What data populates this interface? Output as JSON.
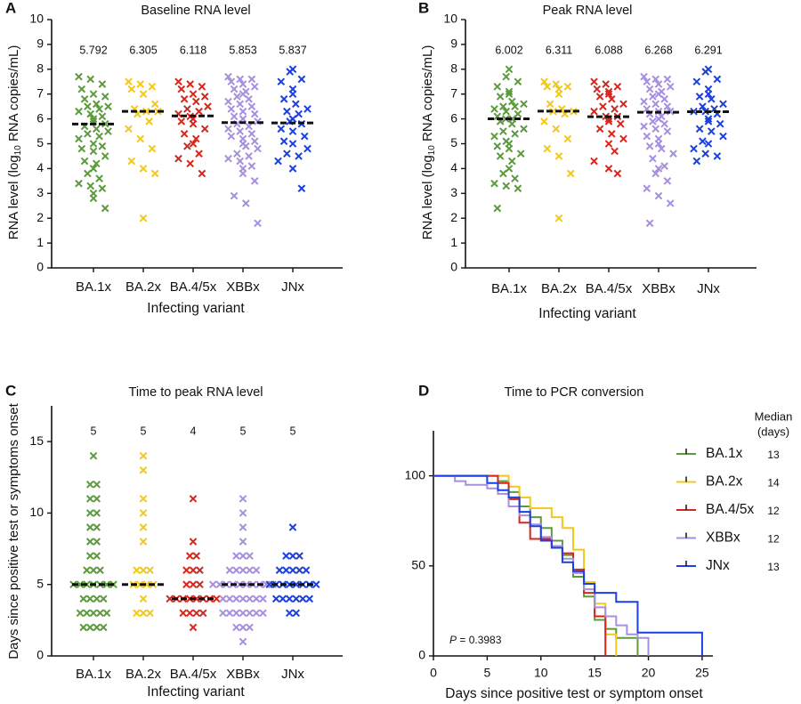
{
  "chart_data": [
    {
      "type": "strip",
      "panel": "A",
      "title": "Baseline RNA level",
      "ylabel": {
        "pre": "RNA level (log",
        "sub": "10",
        "post": " RNA copies/mL)"
      },
      "xlabel": "Infecting variant",
      "categories": [
        "BA.1x",
        "BA.2x",
        "BA.4/5x",
        "XBBx",
        "JNx"
      ],
      "colors": [
        "#5b9b3c",
        "#f2c81a",
        "#d9261c",
        "#a78fe0",
        "#1c3fe0"
      ],
      "medians": [
        5.792,
        6.305,
        6.118,
        5.853,
        5.837
      ],
      "values": [
        [
          7.7,
          7.6,
          7.4,
          7.2,
          7.0,
          6.9,
          6.8,
          6.6,
          6.5,
          6.5,
          6.4,
          6.3,
          6.2,
          6.1,
          6.0,
          5.9,
          5.8,
          5.7,
          5.6,
          5.5,
          5.4,
          5.3,
          5.2,
          5.0,
          4.9,
          4.8,
          4.7,
          4.5,
          4.3,
          4.2,
          4.0,
          3.8,
          3.6,
          3.4,
          3.3,
          3.2,
          3.0,
          2.8,
          2.4
        ],
        [
          7.5,
          7.4,
          7.3,
          7.2,
          7.0,
          6.6,
          6.4,
          6.3,
          6.3,
          6.2,
          5.9,
          5.6,
          5.2,
          4.8,
          4.3,
          4.0,
          3.8,
          2.0
        ],
        [
          7.5,
          7.4,
          7.3,
          7.2,
          7.0,
          6.9,
          6.8,
          6.7,
          6.5,
          6.4,
          6.3,
          6.2,
          6.1,
          6.0,
          5.9,
          5.8,
          5.6,
          5.4,
          5.2,
          5.0,
          4.9,
          4.6,
          4.4,
          4.2,
          3.8
        ],
        [
          7.7,
          7.6,
          7.6,
          7.5,
          7.4,
          7.3,
          7.2,
          7.1,
          7.0,
          6.9,
          6.8,
          6.7,
          6.6,
          6.5,
          6.4,
          6.3,
          6.2,
          6.1,
          6.0,
          5.9,
          5.8,
          5.7,
          5.6,
          5.5,
          5.4,
          5.3,
          5.2,
          5.1,
          5.0,
          4.9,
          4.8,
          4.6,
          4.5,
          4.4,
          4.3,
          4.1,
          4.0,
          3.8,
          3.5,
          2.9,
          2.6,
          1.8
        ],
        [
          8.0,
          7.9,
          7.6,
          7.5,
          7.2,
          7.0,
          6.8,
          6.6,
          6.4,
          6.3,
          6.2,
          6.0,
          5.9,
          5.8,
          5.6,
          5.5,
          5.3,
          5.1,
          5.0,
          4.8,
          4.6,
          4.5,
          4.3,
          4.0,
          3.2
        ]
      ],
      "ylim": [
        0,
        10
      ],
      "yticks": [
        0,
        1,
        2,
        3,
        4,
        5,
        6,
        7,
        8,
        9,
        10
      ]
    },
    {
      "type": "strip",
      "panel": "B",
      "title": "Peak RNA level",
      "ylabel": {
        "pre": "RNA level (log",
        "sub": "10",
        "post": " RNA copies/mL)"
      },
      "xlabel": "Infecting variant",
      "categories": [
        "BA.1x",
        "BA.2x",
        "BA.4/5x",
        "XBBx",
        "JNx"
      ],
      "colors": [
        "#5b9b3c",
        "#f2c81a",
        "#d9261c",
        "#a78fe0",
        "#1c3fe0"
      ],
      "medians": [
        6.002,
        6.311,
        6.088,
        6.268,
        6.291
      ],
      "values": [
        [
          8.0,
          7.7,
          7.5,
          7.3,
          7.1,
          7.0,
          6.9,
          6.7,
          6.6,
          6.5,
          6.5,
          6.4,
          6.3,
          6.2,
          6.1,
          6.0,
          6.0,
          5.9,
          5.8,
          5.6,
          5.5,
          5.4,
          5.3,
          5.1,
          5.0,
          4.9,
          4.8,
          4.6,
          4.5,
          4.3,
          4.0,
          3.8,
          3.6,
          3.4,
          3.3,
          3.2,
          2.4
        ],
        [
          7.5,
          7.4,
          7.3,
          7.3,
          7.2,
          7.0,
          6.6,
          6.4,
          6.3,
          6.3,
          6.2,
          5.9,
          5.6,
          5.2,
          4.8,
          4.5,
          3.8,
          2.0
        ],
        [
          7.5,
          7.4,
          7.3,
          7.2,
          7.1,
          7.0,
          6.9,
          6.8,
          6.6,
          6.5,
          6.4,
          6.3,
          6.1,
          6.1,
          6.0,
          5.9,
          5.8,
          5.6,
          5.4,
          5.2,
          5.0,
          4.7,
          4.3,
          4.0,
          3.8
        ],
        [
          7.7,
          7.6,
          7.6,
          7.5,
          7.4,
          7.3,
          7.2,
          7.1,
          7.0,
          6.9,
          6.8,
          6.7,
          6.6,
          6.5,
          6.4,
          6.3,
          6.3,
          6.2,
          6.1,
          6.0,
          5.9,
          5.8,
          5.7,
          5.6,
          5.5,
          5.3,
          5.2,
          5.0,
          4.9,
          4.8,
          4.6,
          4.4,
          4.1,
          4.0,
          3.8,
          3.5,
          3.2,
          2.9,
          2.6,
          1.8
        ],
        [
          8.0,
          7.9,
          7.6,
          7.5,
          7.2,
          7.0,
          6.9,
          6.8,
          6.6,
          6.5,
          6.4,
          6.3,
          6.3,
          6.2,
          6.0,
          5.9,
          5.8,
          5.6,
          5.5,
          5.3,
          5.1,
          5.0,
          4.8,
          4.6,
          4.5,
          4.3
        ]
      ],
      "ylim": [
        0,
        10
      ],
      "yticks": [
        0,
        1,
        2,
        3,
        4,
        5,
        6,
        7,
        8,
        9,
        10
      ]
    },
    {
      "type": "strip",
      "panel": "C",
      "title": "Time to peak RNA level",
      "ylabel": "Days since positive test  or symptoms onset",
      "xlabel": "Infecting variant",
      "categories": [
        "BA.1x",
        "BA.2x",
        "BA.4/5x",
        "XBBx",
        "JNx"
      ],
      "colors": [
        "#5b9b3c",
        "#f2c81a",
        "#d9261c",
        "#a78fe0",
        "#1c3fe0"
      ],
      "medians": [
        5,
        5,
        4,
        5,
        5
      ],
      "values": [
        [
          14,
          12,
          12,
          11,
          11,
          10,
          10,
          9,
          9,
          8,
          8,
          7,
          7,
          6,
          6,
          6,
          5,
          5,
          5,
          5,
          5,
          5,
          5,
          4,
          4,
          4,
          4,
          3,
          3,
          3,
          3,
          3,
          2,
          2,
          2,
          2
        ],
        [
          14,
          13,
          11,
          10,
          9,
          8,
          6,
          6,
          6,
          5,
          5,
          5,
          5,
          4,
          3,
          3,
          3
        ],
        [
          11,
          8,
          7,
          7,
          6,
          6,
          6,
          5,
          5,
          5,
          4,
          4,
          4,
          4,
          4,
          4,
          4,
          4,
          3,
          3,
          3,
          3,
          2
        ],
        [
          11,
          10,
          9,
          8,
          7,
          7,
          7,
          6,
          6,
          6,
          6,
          6,
          5,
          5,
          5,
          5,
          5,
          5,
          5,
          5,
          5,
          5,
          4,
          4,
          4,
          4,
          4,
          4,
          4,
          3,
          3,
          3,
          3,
          3,
          3,
          3,
          2,
          2,
          2,
          1
        ],
        [
          9,
          7,
          7,
          7,
          6,
          6,
          6,
          6,
          6,
          5,
          5,
          5,
          5,
          5,
          5,
          5,
          5,
          4,
          4,
          4,
          4,
          4,
          4,
          3,
          3
        ]
      ],
      "ylim": [
        0,
        17.5
      ],
      "yticks": [
        0,
        5,
        10,
        15
      ]
    },
    {
      "type": "step",
      "panel": "D",
      "title": "Time to PCR conversion",
      "xlabel": "Days since positive test or symptom onset",
      "legend_title": [
        "Median",
        "(days)"
      ],
      "annotation": {
        "pre": "P",
        "post": " = 0.3983"
      },
      "series": [
        {
          "name": "BA.1x",
          "color": "#5b9b3c",
          "median": 13,
          "x": [
            0,
            6,
            7,
            8,
            9,
            10,
            11,
            12,
            13,
            14,
            15,
            16,
            17,
            18,
            19
          ],
          "values": [
            100,
            97,
            91,
            83,
            77,
            71,
            64,
            56,
            44,
            33,
            20,
            15,
            10,
            10,
            0
          ]
        },
        {
          "name": "BA.2x",
          "color": "#f2c81a",
          "median": 14,
          "x": [
            0,
            6,
            7,
            8,
            9,
            10,
            11,
            12,
            13,
            14,
            15,
            16,
            17
          ],
          "values": [
            100,
            100,
            94,
            88,
            82,
            82,
            77,
            71,
            59,
            41,
            29,
            12,
            0
          ]
        },
        {
          "name": "BA.4/5x",
          "color": "#d9261c",
          "median": 12,
          "x": [
            0,
            6,
            7,
            8,
            9,
            10,
            11,
            12,
            13,
            14,
            15,
            16
          ],
          "values": [
            100,
            96,
            87,
            74,
            65,
            65,
            61,
            57,
            48,
            35,
            22,
            0
          ]
        },
        {
          "name": "XBBx",
          "color": "#a78fe0",
          "median": 12,
          "x": [
            0,
            2,
            3,
            5,
            6,
            7,
            8,
            9,
            10,
            11,
            12,
            13,
            14,
            15,
            16,
            17,
            18,
            19,
            20
          ],
          "values": [
            100,
            97,
            95,
            93,
            90,
            83,
            78,
            73,
            66,
            61,
            54,
            46,
            37,
            27,
            22,
            17,
            12,
            10,
            0
          ]
        },
        {
          "name": "JNx",
          "color": "#1c3fe0",
          "median": 13,
          "x": [
            0,
            5,
            6,
            7,
            8,
            9,
            10,
            11,
            12,
            13,
            14,
            15,
            16,
            17,
            19,
            25
          ],
          "values": [
            100,
            96,
            92,
            88,
            80,
            72,
            64,
            60,
            52,
            47,
            40,
            35,
            35,
            30,
            13,
            0
          ]
        }
      ],
      "xlim": [
        0,
        26
      ],
      "xticks": [
        0,
        5,
        10,
        15,
        20,
        25
      ],
      "ylim": [
        0,
        125
      ],
      "yticks": [
        0,
        50,
        100
      ]
    }
  ]
}
